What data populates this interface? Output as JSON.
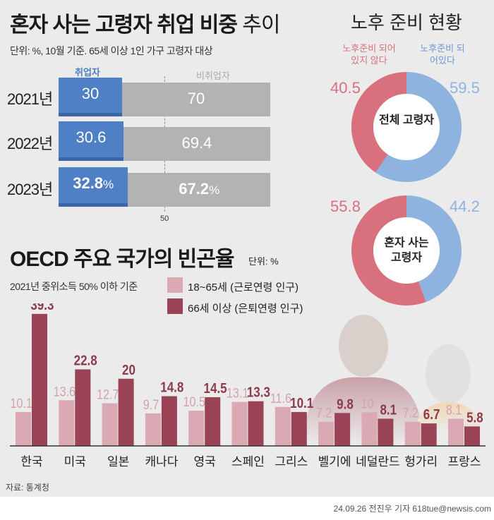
{
  "left_chart": {
    "title_bold": "혼자 사는 고령자 취업 비중",
    "title_light": "추이",
    "subtitle": "단위: %, 10월 기준.  65세 이상 1인 가구 고령자 대상",
    "legend_employed": "취업자",
    "legend_unemployed": "비취업자",
    "rows": [
      {
        "year": "2021년",
        "employed": "30",
        "unemployed": "70"
      },
      {
        "year": "2022년",
        "employed": "30.6",
        "unemployed": "69.4"
      },
      {
        "year": "2023년",
        "employed": "32.8",
        "unemployed": "67.2",
        "unit": "%"
      }
    ],
    "axis_marker": "50"
  },
  "right_chart": {
    "title": "노후 준비 현황",
    "legend_not_ready": "노후준비 되어있지 않다",
    "legend_ready": "노후준비 되어있다",
    "donuts": [
      {
        "center": "전체 고령자",
        "not_ready": "40.5",
        "ready": "59.5"
      },
      {
        "center": "혼자 사는 고령자",
        "not_ready": "55.8",
        "ready": "44.2"
      }
    ]
  },
  "chart_data": [
    {
      "type": "bar",
      "orientation": "horizontal-stacked",
      "title": "혼자 사는 고령자 취업 비중 추이",
      "categories": [
        "2021년",
        "2022년",
        "2023년"
      ],
      "series": [
        {
          "name": "취업자",
          "values": [
            30,
            30.6,
            32.8
          ],
          "color": "#4f7fc4"
        },
        {
          "name": "비취업자",
          "values": [
            70,
            69.4,
            67.2
          ],
          "color": "#b3b3b3"
        }
      ],
      "xlim": [
        0,
        100
      ]
    },
    {
      "type": "pie",
      "title": "노후 준비 현황",
      "charts": [
        {
          "label": "전체 고령자",
          "slices": [
            {
              "name": "노후준비 되어있지 않다",
              "value": 40.5,
              "color": "#d9707e"
            },
            {
              "name": "노후준비 되어있다",
              "value": 59.5,
              "color": "#8fb3df"
            }
          ]
        },
        {
          "label": "혼자 사는 고령자",
          "slices": [
            {
              "name": "노후준비 되어있지 않다",
              "value": 55.8,
              "color": "#d9707e"
            },
            {
              "name": "노후준비 되어있다",
              "value": 44.2,
              "color": "#8fb3df"
            }
          ]
        }
      ]
    },
    {
      "type": "bar",
      "title": "OECD 주요 국가의 빈곤율",
      "unit": "단위: %",
      "subtitle": "2021년 중위소득 50% 이하 기준",
      "categories": [
        "한국",
        "미국",
        "일본",
        "캐나다",
        "영국",
        "스페인",
        "그리스",
        "벨기에",
        "네덜란드",
        "헝가리",
        "프랑스"
      ],
      "series": [
        {
          "name": "18~65세 (근로연령 인구)",
          "values": [
            10.1,
            13.6,
            12.7,
            9.7,
            10.5,
            13.1,
            11.6,
            7.2,
            10,
            7.2,
            8.1
          ],
          "labels": [
            "10.1",
            "13.6",
            "12.7",
            "9.7",
            "10.5",
            "13.1",
            "11.6",
            "7.2",
            "10",
            "7.2",
            "8.1"
          ],
          "color": "#dba9b3"
        },
        {
          "name": "66세 이상 (은퇴연령 인구)",
          "values": [
            39.3,
            22.8,
            20,
            14.8,
            14.5,
            13.3,
            10.1,
            9.8,
            8.1,
            6.7,
            5.8
          ],
          "labels": [
            "39.3",
            "22.8",
            "20",
            "14.8",
            "14.5",
            "13.3",
            "10.1",
            "9.8",
            "8.1",
            "6.7",
            "5.8"
          ],
          "color": "#9a4256"
        }
      ]
    }
  ],
  "footer": {
    "source": "자료: 통계청",
    "credit": "24.09.26 전진우 기자 618tue@newsis.com"
  }
}
